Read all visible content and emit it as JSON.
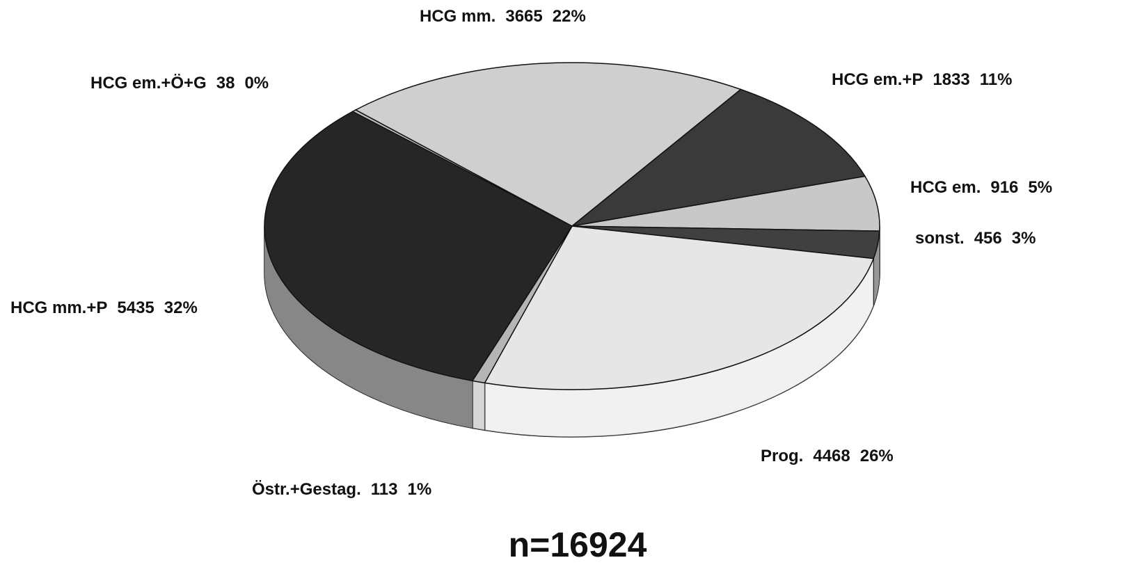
{
  "chart_data": {
    "type": "pie",
    "title": "n=16924",
    "categories": [
      "HCG em.+Ö+G",
      "HCG mm.",
      "HCG em.+P",
      "HCG em.",
      "sonst.",
      "Prog.",
      "Östr.+Gestag.",
      "HCG mm.+P"
    ],
    "values": [
      38,
      3665,
      1833,
      916,
      456,
      4468,
      113,
      5435
    ],
    "value_labels": [
      "0%",
      "22%",
      "11%",
      "5%",
      "3%",
      "26%",
      "1%",
      "32%"
    ],
    "colors": [
      "#bdbdbd",
      "#cfcfcf",
      "#3a3a3a",
      "#c8c8c8",
      "#404040",
      "#e6e6e6",
      "#b5b5b5",
      "#262626"
    ]
  }
}
